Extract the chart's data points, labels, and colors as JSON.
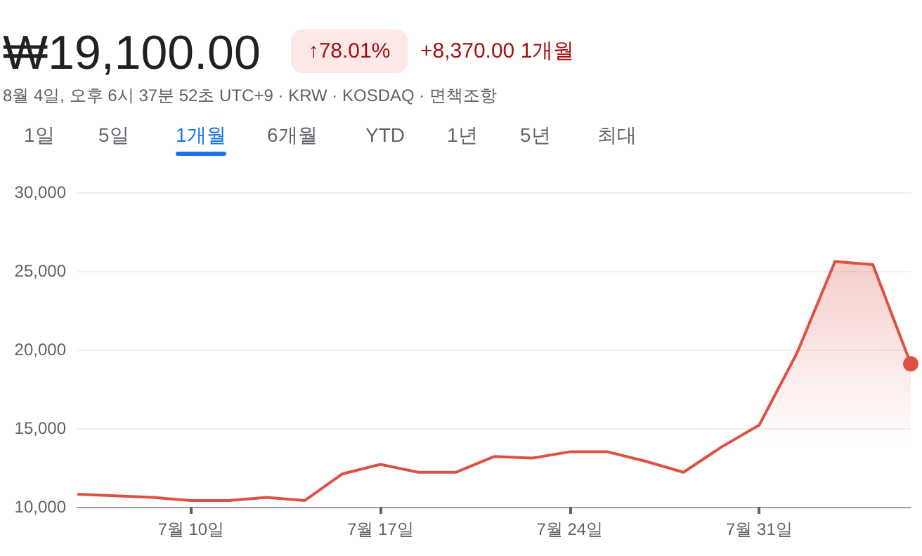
{
  "chart_data": {
    "type": "area",
    "title": "₩19,100.00",
    "subtitle": "8월 4일, 오후 6시 37분 52초 UTC+9 · KRW · KOSDAQ · 면책조항",
    "annotations": [
      "↑78.01%",
      "+8,370.00 1개월",
      "1일",
      "5일",
      "1개월",
      "6개월",
      "YTD",
      "1년",
      "5년",
      "최대"
    ],
    "categories": [
      null,
      null,
      null,
      "7월 10일",
      null,
      null,
      null,
      null,
      "7월 17일",
      null,
      null,
      null,
      null,
      "7월 24일",
      null,
      null,
      null,
      null,
      "7월 31일",
      null,
      null,
      null,
      null
    ],
    "series": [
      {
        "color": "#dd5144",
        "values": [
          10800,
          10700,
          10600,
          10400,
          10400,
          10600,
          10400,
          12100,
          12700,
          12200,
          12200,
          13200,
          13100,
          13500,
          13500,
          12900,
          12200,
          13800,
          15200,
          19800,
          25600,
          25400,
          19100
        ]
      }
    ],
    "ylim": [
      10000,
      30000
    ],
    "yticks": [
      {
        "value": 10000,
        "label": "10,000"
      },
      {
        "value": 15000,
        "label": "15,000"
      },
      {
        "value": 20000,
        "label": "20,000"
      },
      {
        "value": 25000,
        "label": "25,000"
      },
      {
        "value": 30000,
        "label": "30,000"
      }
    ],
    "grid": "y"
  }
}
